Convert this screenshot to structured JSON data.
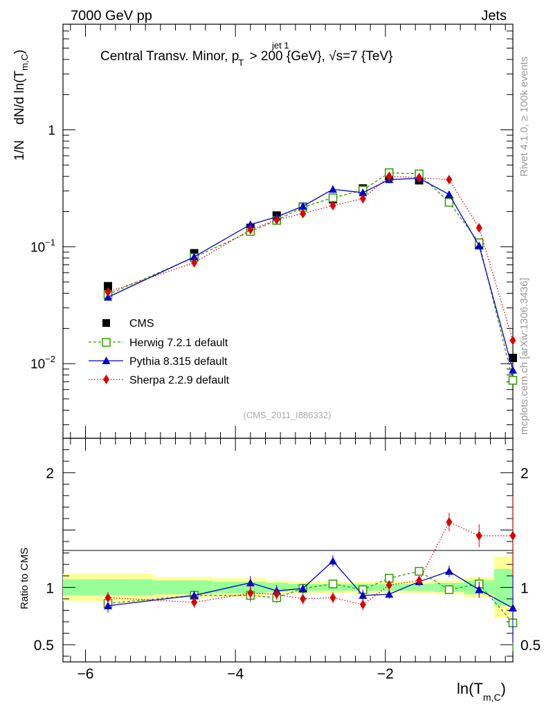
{
  "header": {
    "left": "7000 GeV pp",
    "right": "Jets",
    "title_main": "Central Transv. Minor, p",
    "title_sup": "jet 1",
    "title_sub": "T",
    "title_rest": " > 200 {GeV}, √s=7 {TeV}",
    "analysis_id": "(CMS_2011_I886332)",
    "side_rivet": "Rivet 4.1.0, ≥ 100k events",
    "side_mcplots": "mcplots.cern.ch [arXiv:1306.3436]"
  },
  "axes": {
    "ylabel_main_a": "1/N",
    "ylabel_main_b": "dN/d ln(T",
    "ylabel_main_sub": "m,C",
    "ylabel_main_c": ")",
    "ylabel_ratio": "Ratio to CMS",
    "xlabel_a": "ln(T",
    "xlabel_sub": "m,C",
    "xlabel_c": ")",
    "main_ticks": [
      {
        "text": "1",
        "sup": ""
      },
      {
        "text": "10",
        "sup": "−1"
      },
      {
        "text": "10",
        "sup": "−2"
      }
    ],
    "ratio_ticks": [
      "2",
      "1",
      "0.5"
    ],
    "x_ticks": [
      "−6",
      "−4",
      "−2"
    ]
  },
  "legend": [
    {
      "label": "CMS"
    },
    {
      "label": "Herwig 7.2.1 default"
    },
    {
      "label": "Pythia 8.315 default"
    },
    {
      "label": "Sherpa 2.2.9 default"
    }
  ],
  "chart_data": {
    "type": "scatter",
    "title": "Central Transv. Minor, pT(jet 1) > 200 GeV, sqrt(s)=7 TeV",
    "xlabel": "ln(T_m,C)",
    "ylabel": "1/N dN/d ln(T_m,C)",
    "xlim": [
      -6.3,
      -0.3
    ],
    "ylim": [
      0.0023,
      8
    ],
    "yscale": "log",
    "ratio_ylim": [
      0.35,
      2.3
    ],
    "x": [
      -5.7,
      -4.55,
      -3.8,
      -3.45,
      -3.1,
      -2.7,
      -2.3,
      -1.95,
      -1.55,
      -1.15,
      -0.75,
      -0.3
    ],
    "cms_band_edges": [
      -6.3,
      -5.1,
      -4.3,
      -3.6,
      -3.3,
      -2.9,
      -2.5,
      -2.1,
      -1.75,
      -1.35,
      -0.95,
      -0.55,
      -0.1
    ],
    "cms_band_yellow": [
      0.12,
      0.09,
      0.08,
      0.06,
      0.05,
      0.05,
      0.05,
      0.05,
      0.05,
      0.06,
      0.09,
      0.27
    ],
    "cms_band_green": [
      0.07,
      0.06,
      0.05,
      0.04,
      0.03,
      0.03,
      0.03,
      0.03,
      0.03,
      0.04,
      0.06,
      0.16
    ],
    "series": [
      {
        "name": "CMS",
        "color": "#000000",
        "values": [
          0.046,
          0.088,
          0.145,
          0.185,
          0.22,
          0.255,
          0.315,
          0.4,
          0.37,
          0.245,
          0.103,
          0.0112
        ]
      },
      {
        "name": "Herwig 7.2.1 default",
        "color": "#339900",
        "values": [
          0.039,
          0.081,
          0.135,
          0.168,
          0.218,
          0.262,
          0.305,
          0.43,
          0.42,
          0.24,
          0.108,
          0.0072
        ],
        "ratio": [
          0.86,
          0.93,
          0.93,
          0.91,
          0.99,
          1.03,
          0.98,
          1.08,
          1.14,
          0.98,
          1.03,
          0.69
        ],
        "ratio_err": [
          0.05,
          0.04,
          0.06,
          0.05,
          0.04,
          0.04,
          0.04,
          0.03,
          0.03,
          0.04,
          0.06,
          0.25
        ]
      },
      {
        "name": "Pythia 8.315 default",
        "color": "#0000cc",
        "values": [
          0.037,
          0.082,
          0.155,
          0.18,
          0.222,
          0.31,
          0.29,
          0.375,
          0.385,
          0.28,
          0.102,
          0.0088
        ],
        "ratio": [
          0.84,
          0.93,
          1.04,
          0.97,
          0.99,
          1.23,
          0.93,
          0.94,
          1.05,
          1.14,
          0.98,
          0.82
        ],
        "ratio_err": [
          0.06,
          0.04,
          0.06,
          0.05,
          0.04,
          0.05,
          0.05,
          0.04,
          0.04,
          0.05,
          0.07,
          0.3
        ]
      },
      {
        "name": "Sherpa 2.2.9 default",
        "color": "#dd0000",
        "values": [
          0.041,
          0.073,
          0.14,
          0.17,
          0.192,
          0.225,
          0.258,
          0.4,
          0.39,
          0.375,
          0.145,
          0.0158
        ],
        "ratio": [
          0.91,
          0.87,
          0.95,
          0.94,
          0.9,
          0.91,
          0.85,
          1.02,
          1.06,
          1.57,
          1.45,
          1.45
        ],
        "ratio_err": [
          0.05,
          0.05,
          0.06,
          0.05,
          0.05,
          0.05,
          0.05,
          0.04,
          0.04,
          0.08,
          0.1,
          0.35
        ]
      }
    ]
  }
}
